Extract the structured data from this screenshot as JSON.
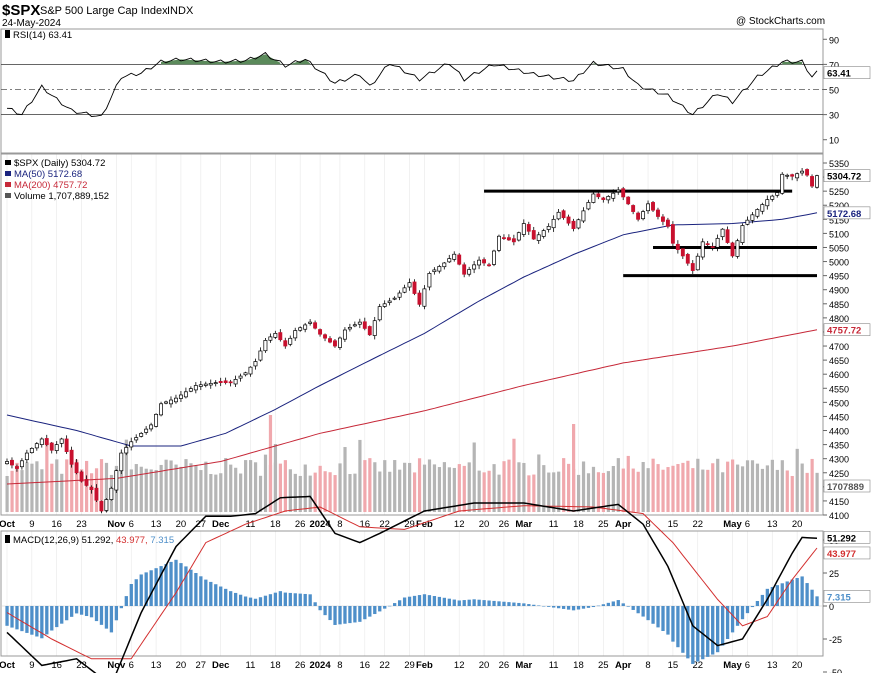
{
  "header": {
    "symbol": "$SPX",
    "name": "S&P 500 Large Cap Index",
    "exchange": "INDX",
    "date": "24-May-2024",
    "credit": "@ StockCharts.com"
  },
  "colors": {
    "up": "#ffffff",
    "down": "#c8102e",
    "ma50": "#1a237e",
    "ma200": "#c62838",
    "volume_up": "#b5b5b5",
    "volume_down": "#f0a8ad",
    "rsi_fill": "#5b8a5b",
    "macd_hist": "#4e8fc9"
  },
  "rsi_panel": {
    "label": "RSI(14) 63.41",
    "last_value_tag": "63.41",
    "ticks": [
      "90",
      "70",
      "50",
      "30",
      "10"
    ]
  },
  "price_panel": {
    "legend": [
      {
        "text": "$SPX (Daily) 5304.72",
        "color": "#000000"
      },
      {
        "text": "MA(50) 5172.68",
        "color": "#1a237e"
      },
      {
        "text": "MA(200) 4757.72",
        "color": "#c62838"
      },
      {
        "text": "Volume 1,707,889,152",
        "color": "#555555"
      }
    ],
    "ticks": [
      "5350",
      "5300",
      "5250",
      "5200",
      "5150",
      "5100",
      "5050",
      "5000",
      "4950",
      "4900",
      "4850",
      "4800",
      "4750",
      "4700",
      "4650",
      "4600",
      "4550",
      "4500",
      "4450",
      "4400",
      "4350",
      "4300",
      "4250",
      "4200",
      "4150",
      "4100"
    ],
    "tags": {
      "last": "5304.72",
      "ma50": "5172.68",
      "ma200": "4757.72",
      "volume": "1707889"
    }
  },
  "macd_panel": {
    "label_prefix": "MACD(12,26,9)",
    "macd": "51.292",
    "signal": "43.977",
    "hist": "7.315",
    "tags": [
      "51.292",
      "43.977",
      "7.315"
    ],
    "ticks": [
      "50",
      "25",
      "0",
      "-25",
      "-50"
    ]
  },
  "x_axis": {
    "labels": [
      {
        "text": "Oct",
        "bold": true
      },
      {
        "text": "9"
      },
      {
        "text": "16"
      },
      {
        "text": "23"
      },
      {
        "text": "Nov",
        "bold": true
      },
      {
        "text": "6"
      },
      {
        "text": "13"
      },
      {
        "text": "20"
      },
      {
        "text": "27"
      },
      {
        "text": "Dec",
        "bold": true
      },
      {
        "text": "11"
      },
      {
        "text": "18"
      },
      {
        "text": "26"
      },
      {
        "text": "2024",
        "bold": true
      },
      {
        "text": "8"
      },
      {
        "text": "16"
      },
      {
        "text": "22"
      },
      {
        "text": "29"
      },
      {
        "text": "Feb",
        "bold": true
      },
      {
        "text": "12"
      },
      {
        "text": "20"
      },
      {
        "text": "26"
      },
      {
        "text": "Mar",
        "bold": true
      },
      {
        "text": "11"
      },
      {
        "text": "18"
      },
      {
        "text": "25"
      },
      {
        "text": "Apr",
        "bold": true
      },
      {
        "text": "8"
      },
      {
        "text": "15"
      },
      {
        "text": "22"
      },
      {
        "text": "May",
        "bold": true
      },
      {
        "text": "6"
      },
      {
        "text": "13"
      },
      {
        "text": "20"
      }
    ]
  },
  "chart_data": {
    "type": "candlestick",
    "period": "daily",
    "x_range": [
      "2023-10-02",
      "2024-05-24"
    ],
    "price_range": [
      4100,
      5350
    ],
    "levels": [
      {
        "value": 5250,
        "from": "2024-02-20",
        "to": "2024-05-17"
      },
      {
        "value": 5050,
        "from": "2024-04-09",
        "to": "2024-05-24"
      },
      {
        "value": 4950,
        "from": "2024-04-01",
        "to": "2024-05-24"
      }
    ],
    "price_anchors": [
      [
        "2023-10-02",
        4290
      ],
      [
        "2023-10-04",
        4265
      ],
      [
        "2023-10-06",
        4320
      ],
      [
        "2023-10-11",
        4370
      ],
      [
        "2023-10-13",
        4330
      ],
      [
        "2023-10-17",
        4370
      ],
      [
        "2023-10-19",
        4280
      ],
      [
        "2023-10-23",
        4220
      ],
      [
        "2023-10-25",
        4190
      ],
      [
        "2023-10-27",
        4115
      ],
      [
        "2023-10-31",
        4195
      ],
      [
        "2023-11-02",
        4320
      ],
      [
        "2023-11-06",
        4360
      ],
      [
        "2023-11-10",
        4420
      ],
      [
        "2023-11-14",
        4495
      ],
      [
        "2023-11-17",
        4515
      ],
      [
        "2023-11-24",
        4560
      ],
      [
        "2023-11-30",
        4570
      ],
      [
        "2023-12-05",
        4570
      ],
      [
        "2023-12-08",
        4605
      ],
      [
        "2023-12-12",
        4645
      ],
      [
        "2023-12-14",
        4720
      ],
      [
        "2023-12-18",
        4745
      ],
      [
        "2023-12-20",
        4700
      ],
      [
        "2023-12-22",
        4755
      ],
      [
        "2023-12-28",
        4785
      ],
      [
        "2024-01-02",
        4742
      ],
      [
        "2024-01-05",
        4700
      ],
      [
        "2024-01-09",
        4757
      ],
      [
        "2024-01-12",
        4785
      ],
      [
        "2024-01-17",
        4740
      ],
      [
        "2024-01-19",
        4840
      ],
      [
        "2024-01-24",
        4870
      ],
      [
        "2024-01-29",
        4925
      ],
      [
        "2024-01-31",
        4848
      ],
      [
        "2024-02-02",
        4958
      ],
      [
        "2024-02-07",
        4995
      ],
      [
        "2024-02-09",
        5026
      ],
      [
        "2024-02-13",
        4955
      ],
      [
        "2024-02-16",
        5005
      ],
      [
        "2024-02-21",
        4985
      ],
      [
        "2024-02-23",
        5090
      ],
      [
        "2024-02-28",
        5070
      ],
      [
        "2024-03-01",
        5135
      ],
      [
        "2024-03-05",
        5080
      ],
      [
        "2024-03-08",
        5125
      ],
      [
        "2024-03-12",
        5175
      ],
      [
        "2024-03-15",
        5117
      ],
      [
        "2024-03-19",
        5180
      ],
      [
        "2024-03-21",
        5240
      ],
      [
        "2024-03-25",
        5220
      ],
      [
        "2024-03-28",
        5254
      ],
      [
        "2024-04-02",
        5205
      ],
      [
        "2024-04-04",
        5150
      ],
      [
        "2024-04-08",
        5205
      ],
      [
        "2024-04-10",
        5160
      ],
      [
        "2024-04-12",
        5125
      ],
      [
        "2024-04-15",
        5065
      ],
      [
        "2024-04-17",
        5020
      ],
      [
        "2024-04-19",
        4968
      ],
      [
        "2024-04-23",
        5070
      ],
      [
        "2024-04-25",
        5050
      ],
      [
        "2024-04-29",
        5115
      ],
      [
        "2024-05-01",
        5020
      ],
      [
        "2024-05-03",
        5128
      ],
      [
        "2024-05-08",
        5185
      ],
      [
        "2024-05-10",
        5220
      ],
      [
        "2024-05-14",
        5245
      ],
      [
        "2024-05-15",
        5310
      ],
      [
        "2024-05-17",
        5303
      ],
      [
        "2024-05-21",
        5321
      ],
      [
        "2024-05-22",
        5307
      ],
      [
        "2024-05-23",
        5268
      ],
      [
        "2024-05-24",
        5305
      ]
    ],
    "ma50_anchors": [
      [
        "2023-10-02",
        4455
      ],
      [
        "2023-10-20",
        4400
      ],
      [
        "2023-11-06",
        4345
      ],
      [
        "2023-11-20",
        4345
      ],
      [
        "2023-12-04",
        4390
      ],
      [
        "2023-12-18",
        4475
      ],
      [
        "2024-01-02",
        4560
      ],
      [
        "2024-01-16",
        4640
      ],
      [
        "2024-02-01",
        4745
      ],
      [
        "2024-02-16",
        4860
      ],
      [
        "2024-03-01",
        4945
      ],
      [
        "2024-03-15",
        5025
      ],
      [
        "2024-04-01",
        5095
      ],
      [
        "2024-04-15",
        5130
      ],
      [
        "2024-05-01",
        5135
      ],
      [
        "2024-05-15",
        5150
      ],
      [
        "2024-05-24",
        5173
      ]
    ],
    "ma200_anchors": [
      [
        "2023-10-02",
        4210
      ],
      [
        "2023-11-01",
        4230
      ],
      [
        "2023-12-01",
        4290
      ],
      [
        "2024-01-02",
        4390
      ],
      [
        "2024-02-01",
        4470
      ],
      [
        "2024-03-01",
        4560
      ],
      [
        "2024-04-01",
        4640
      ],
      [
        "2024-05-01",
        4700
      ],
      [
        "2024-05-24",
        4758
      ]
    ],
    "rsi_anchors": [
      [
        "2023-10-02",
        35
      ],
      [
        "2023-10-05",
        30
      ],
      [
        "2023-10-11",
        52
      ],
      [
        "2023-10-16",
        42
      ],
      [
        "2023-10-19",
        33
      ],
      [
        "2023-10-27",
        28
      ],
      [
        "2023-11-02",
        60
      ],
      [
        "2023-11-08",
        63
      ],
      [
        "2023-11-14",
        72
      ],
      [
        "2023-11-20",
        74
      ],
      [
        "2023-12-01",
        72
      ],
      [
        "2023-12-08",
        73
      ],
      [
        "2023-12-14",
        78
      ],
      [
        "2023-12-20",
        69
      ],
      [
        "2023-12-27",
        74
      ],
      [
        "2024-01-05",
        55
      ],
      [
        "2024-01-12",
        62
      ],
      [
        "2024-01-17",
        52
      ],
      [
        "2024-01-23",
        71
      ],
      [
        "2024-01-31",
        58
      ],
      [
        "2024-02-08",
        71
      ],
      [
        "2024-02-13",
        58
      ],
      [
        "2024-02-22",
        70
      ],
      [
        "2024-03-05",
        62
      ],
      [
        "2024-03-15",
        57
      ],
      [
        "2024-03-21",
        71
      ],
      [
        "2024-04-01",
        66
      ],
      [
        "2024-04-04",
        53
      ],
      [
        "2024-04-12",
        45
      ],
      [
        "2024-04-19",
        30
      ],
      [
        "2024-04-26",
        47
      ],
      [
        "2024-05-01",
        40
      ],
      [
        "2024-05-08",
        60
      ],
      [
        "2024-05-15",
        72
      ],
      [
        "2024-05-21",
        72
      ],
      [
        "2024-05-23",
        60
      ],
      [
        "2024-05-24",
        63.41
      ]
    ],
    "macd_anchors": [
      [
        "2023-10-02",
        -20
      ],
      [
        "2023-10-11",
        -45
      ],
      [
        "2023-10-20",
        -40
      ],
      [
        "2023-10-31",
        -60
      ],
      [
        "2023-11-08",
        -5
      ],
      [
        "2023-11-17",
        45
      ],
      [
        "2023-11-28",
        68
      ],
      [
        "2023-12-05",
        68
      ],
      [
        "2023-12-12",
        70
      ],
      [
        "2023-12-19",
        82
      ],
      [
        "2023-12-28",
        83
      ],
      [
        "2024-01-05",
        55
      ],
      [
        "2024-01-12",
        48
      ],
      [
        "2024-01-19",
        55
      ],
      [
        "2024-02-01",
        72
      ],
      [
        "2024-02-15",
        78
      ],
      [
        "2024-03-01",
        78
      ],
      [
        "2024-03-15",
        72
      ],
      [
        "2024-03-28",
        77
      ],
      [
        "2024-04-05",
        62
      ],
      [
        "2024-04-12",
        30
      ],
      [
        "2024-04-19",
        -15
      ],
      [
        "2024-04-26",
        -30
      ],
      [
        "2024-05-03",
        -25
      ],
      [
        "2024-05-10",
        5
      ],
      [
        "2024-05-17",
        40
      ],
      [
        "2024-05-21",
        52
      ],
      [
        "2024-05-24",
        51.292
      ]
    ],
    "signal_anchors": [
      [
        "2023-10-02",
        -5
      ],
      [
        "2023-10-15",
        -25
      ],
      [
        "2023-10-25",
        -40
      ],
      [
        "2023-11-06",
        -40
      ],
      [
        "2023-11-17",
        10
      ],
      [
        "2023-11-28",
        48
      ],
      [
        "2023-12-08",
        62
      ],
      [
        "2023-12-20",
        72
      ],
      [
        "2024-01-02",
        75
      ],
      [
        "2024-01-12",
        60
      ],
      [
        "2024-01-26",
        58
      ],
      [
        "2024-02-12",
        72
      ],
      [
        "2024-03-01",
        76
      ],
      [
        "2024-03-21",
        75
      ],
      [
        "2024-04-05",
        70
      ],
      [
        "2024-04-15",
        48
      ],
      [
        "2024-04-26",
        5
      ],
      [
        "2024-05-03",
        -15
      ],
      [
        "2024-05-10",
        -8
      ],
      [
        "2024-05-17",
        20
      ],
      [
        "2024-05-24",
        43.977
      ]
    ],
    "volume_range_billions": [
      0,
      7.5
    ]
  }
}
